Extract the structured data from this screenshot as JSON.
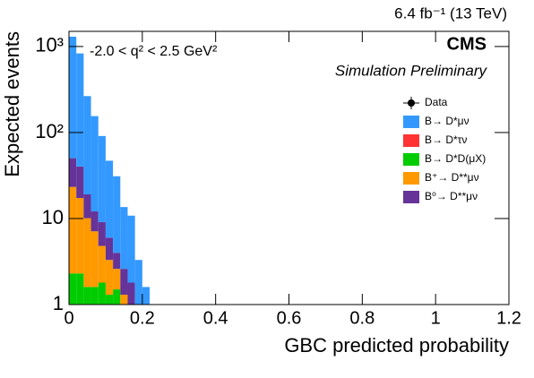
{
  "chart_data": {
    "type": "stacked_histogram",
    "top_label": "6.4 fb⁻¹ (13 TeV)",
    "experiment": "CMS",
    "subtitle": "Simulation Preliminary",
    "annotation": "-2.0 < q² < 2.5 GeV²",
    "x_label": "GBC predicted probability",
    "y_label": "Expected events",
    "bins": [
      0,
      0.02,
      0.04,
      0.06,
      0.08,
      0.1,
      0.12,
      0.14,
      0.16,
      0.18,
      0.2,
      0.22
    ],
    "data_series": {
      "name": "Data",
      "color": "#000000"
    },
    "series": [
      {
        "name": "B→ D*μν",
        "color": "#3399ff",
        "values": [
          1250,
          790,
          246,
          143,
          82,
          41,
          27,
          11,
          9,
          3.3,
          1.6
        ]
      },
      {
        "name": "B→ D*τν",
        "color": "#ff3333",
        "values": [
          0,
          0,
          0,
          0,
          0,
          0,
          0,
          0,
          0,
          0,
          0
        ]
      },
      {
        "name": "B→ D*D(μX)",
        "color": "#00cc00",
        "values": [
          2.3,
          2.3,
          1.6,
          1.6,
          1.8,
          1.3,
          1.5,
          0,
          0,
          0,
          0
        ]
      },
      {
        "name": "B⁺→ D**μν",
        "color": "#ff9900",
        "values": [
          21,
          15,
          8.5,
          5.5,
          3,
          2,
          1.1,
          1.3,
          0,
          0,
          0
        ]
      },
      {
        "name": "B⁰→ D**μν",
        "color": "#663399",
        "values": [
          27,
          23,
          9,
          5,
          4.3,
          2.7,
          1.4,
          1.3,
          1.8,
          0,
          0
        ]
      }
    ],
    "stack_order": [
      2,
      3,
      4,
      0,
      1
    ],
    "xlim": [
      0,
      1.2
    ],
    "xticks": [
      0,
      0.2,
      0.4,
      0.6,
      0.8,
      1,
      1.2
    ],
    "ylim": [
      1,
      1500
    ],
    "yticks": [
      1,
      10,
      {
        "value": 100,
        "label": "10²"
      },
      {
        "value": 1000,
        "label": "10³"
      }
    ],
    "log_y": true,
    "legend": "upper right"
  }
}
